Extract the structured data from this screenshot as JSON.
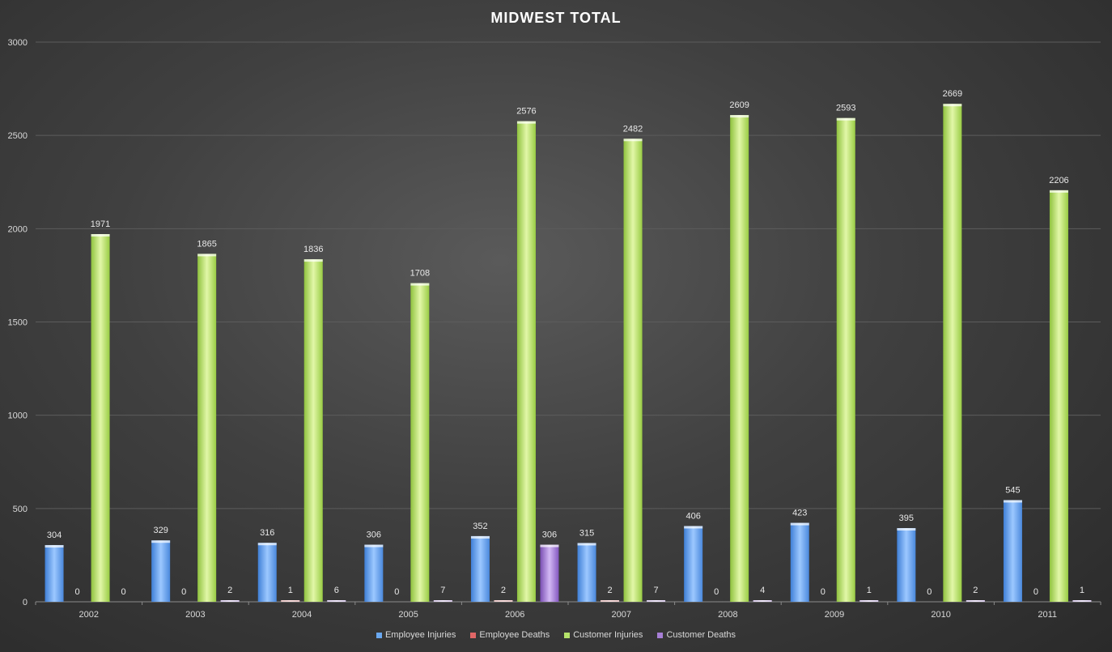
{
  "chart_data": {
    "type": "bar",
    "title": "MIDWEST  TOTAL",
    "categories": [
      "2002",
      "2003",
      "2004",
      "2005",
      "2006",
      "2007",
      "2008",
      "2009",
      "2010",
      "2011"
    ],
    "series": [
      {
        "name": "Employee Injuries",
        "color": "#6aa8f0",
        "values": [
          304,
          329,
          316,
          306,
          352,
          315,
          406,
          423,
          395,
          545
        ]
      },
      {
        "name": "Employee Deaths",
        "color": "#e06666",
        "values": [
          0,
          0,
          1,
          0,
          2,
          2,
          0,
          0,
          0,
          0
        ]
      },
      {
        "name": "Customer Injuries",
        "color": "#b5e36a",
        "values": [
          1971,
          1865,
          1836,
          1708,
          2576,
          2482,
          2609,
          2593,
          2669,
          2206
        ]
      },
      {
        "name": "Customer Deaths",
        "color": "#a77fd6",
        "values": [
          0,
          2,
          6,
          7,
          306,
          7,
          4,
          1,
          2,
          1
        ]
      }
    ],
    "ylim": [
      0,
      3000
    ],
    "yticks": [
      0,
      500,
      1000,
      1500,
      2000,
      2500,
      3000
    ],
    "data_labels": true,
    "grid": true,
    "legend_position": "bottom"
  }
}
